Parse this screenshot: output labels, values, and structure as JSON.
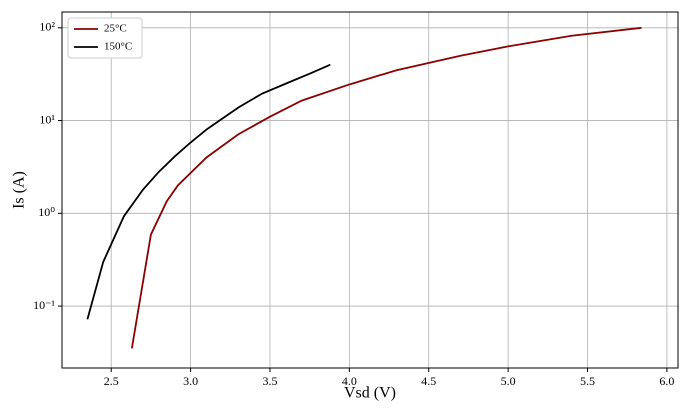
{
  "chart_data": {
    "type": "line",
    "x_label": "Vsd (V)",
    "y_label": "Is (A)",
    "log_y": true,
    "grid": true,
    "legend": "upper left",
    "xlim": [
      2.19,
      6.07
    ],
    "xticks": [
      {
        "value": 2.5,
        "label": "2.5"
      },
      {
        "value": 3,
        "label": "3.0"
      },
      {
        "value": 3.5,
        "label": "3.5"
      },
      {
        "value": 4,
        "label": "4.0"
      },
      {
        "value": 4.5,
        "label": "4.5"
      },
      {
        "value": 5,
        "label": "5.0"
      },
      {
        "value": 5.5,
        "label": "5.5"
      },
      {
        "value": 6,
        "label": "6.0"
      }
    ],
    "ylim": [
      0.0215,
      148
    ],
    "yticks": [
      {
        "value": 0.1,
        "label": "10⁻¹"
      },
      {
        "value": 1,
        "label": "10⁰"
      },
      {
        "value": 10,
        "label": "10¹"
      },
      {
        "value": 100,
        "label": "10²"
      }
    ],
    "series": [
      {
        "name": "25°C",
        "color": "#8b0000",
        "x": [
          2.63,
          2.75,
          2.85,
          2.92,
          3.1,
          3.3,
          3.5,
          3.7,
          4.0,
          4.3,
          4.7,
          5.0,
          5.4,
          5.84
        ],
        "values": [
          0.035,
          0.59,
          1.35,
          2.0,
          4.0,
          7.1,
          11,
          16.4,
          24.5,
          35,
          50,
          63,
          82,
          100
        ]
      },
      {
        "name": "150°C",
        "color": "#000000",
        "x": [
          2.35,
          2.45,
          2.58,
          2.7,
          2.8,
          2.9,
          3.0,
          3.1,
          3.3,
          3.45,
          3.6,
          3.75,
          3.88
        ],
        "values": [
          0.072,
          0.3,
          0.93,
          1.8,
          2.8,
          4.1,
          5.8,
          8,
          13.8,
          19.5,
          25,
          32,
          40
        ]
      }
    ]
  }
}
